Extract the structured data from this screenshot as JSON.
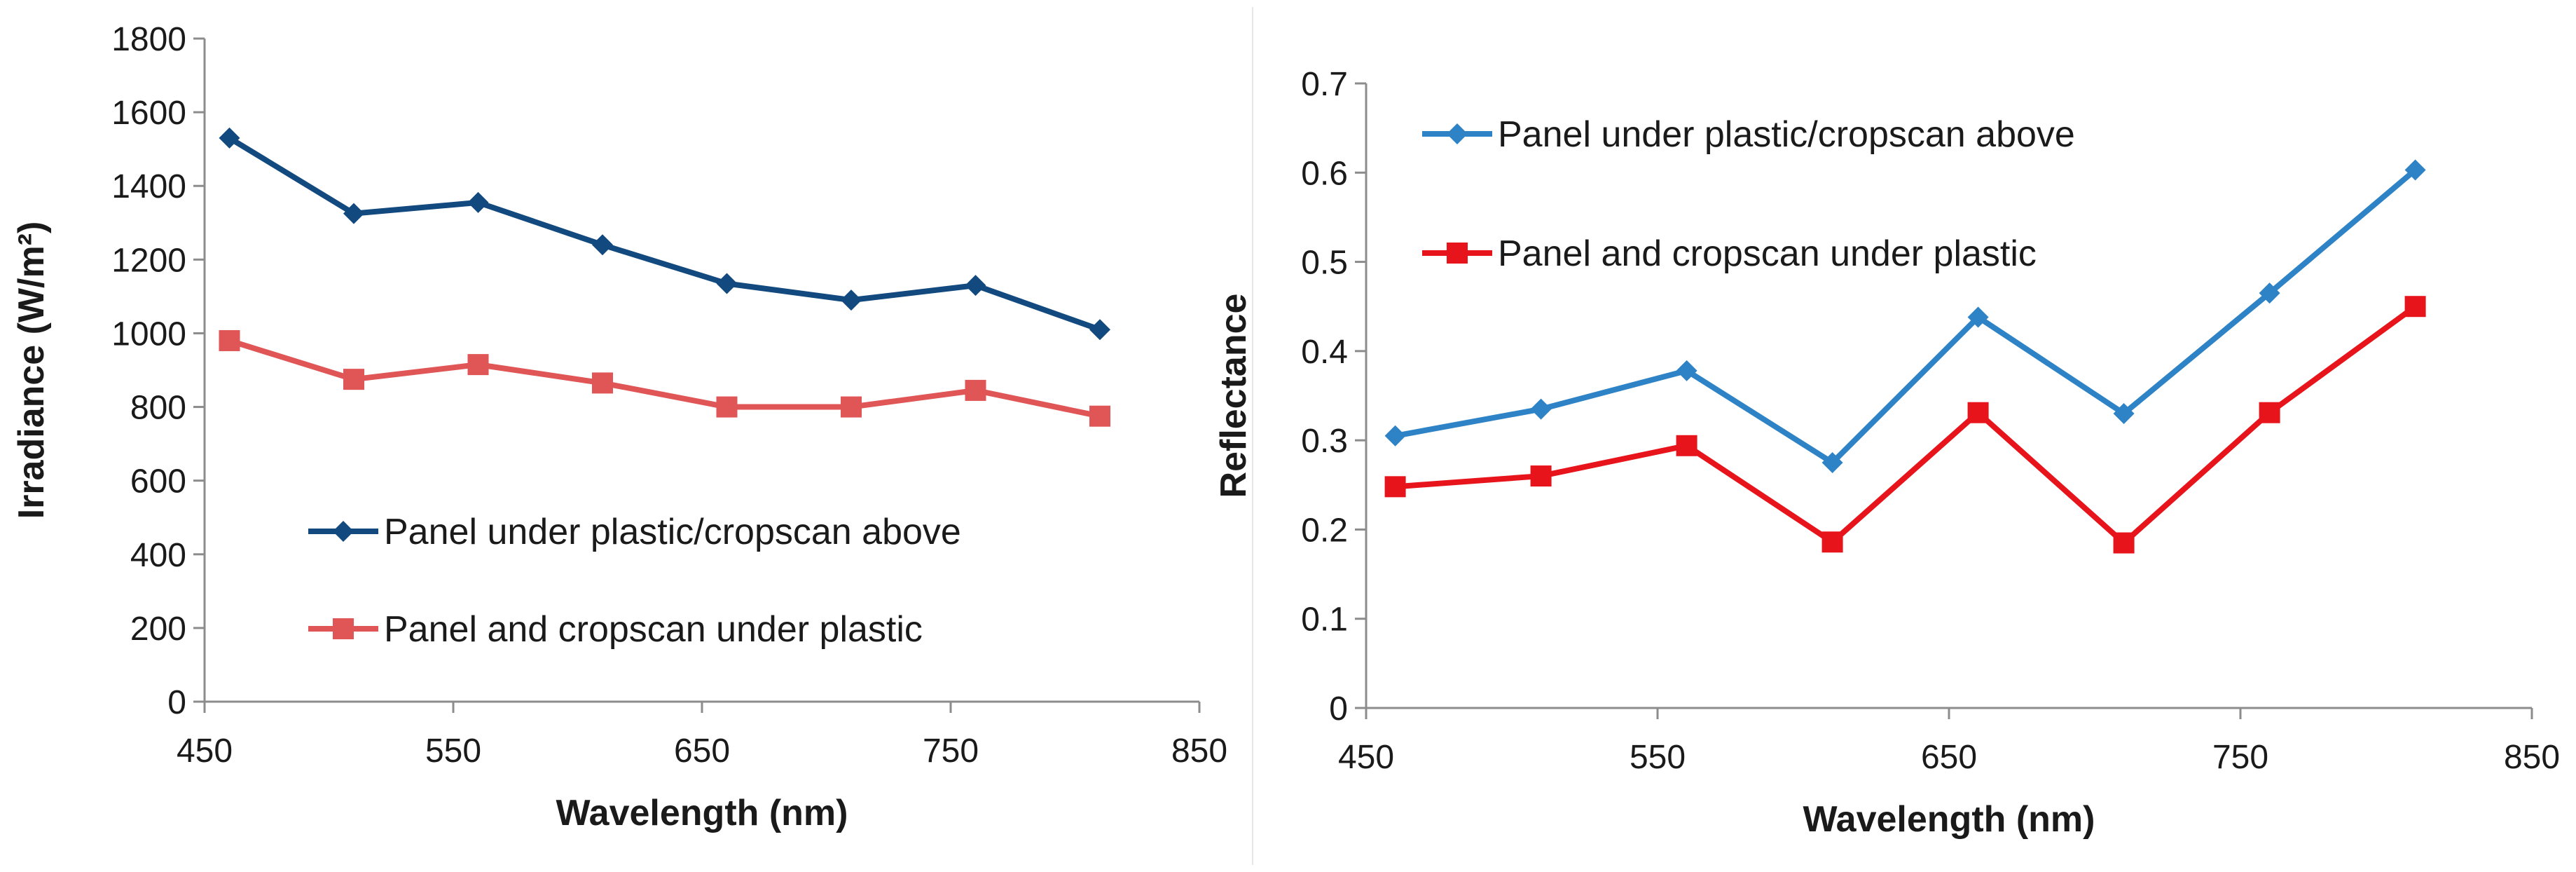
{
  "chart_data": [
    {
      "type": "line",
      "title": "",
      "xlabel": "Wavelength (nm)",
      "ylabel": "Irradiance (W/m²)",
      "xlim": [
        450,
        850
      ],
      "ylim": [
        0,
        1800
      ],
      "x_ticks": [
        "450",
        "550",
        "650",
        "750",
        "850"
      ],
      "y_ticks": [
        "0",
        "200",
        "400",
        "600",
        "800",
        "1000",
        "1200",
        "1400",
        "1600",
        "1800"
      ],
      "x": [
        460,
        510,
        560,
        610,
        660,
        710,
        760,
        810
      ],
      "legend_position": "lower-left",
      "grid": false,
      "series": [
        {
          "name": "Panel under plastic/cropscan above",
          "color": "#12497f",
          "marker": "diamond",
          "values": [
            1530,
            1325,
            1355,
            1240,
            1135,
            1090,
            1130,
            1010
          ]
        },
        {
          "name": "Panel and cropscan under plastic",
          "color": "#e05555",
          "marker": "square",
          "values": [
            980,
            875,
            915,
            865,
            800,
            800,
            845,
            775
          ]
        }
      ]
    },
    {
      "type": "line",
      "title": "",
      "xlabel": "Wavelength (nm)",
      "ylabel": "Reflectance",
      "xlim": [
        450,
        850
      ],
      "ylim": [
        0,
        0.7
      ],
      "x_ticks": [
        "450",
        "550",
        "650",
        "750",
        "850"
      ],
      "y_ticks": [
        "0",
        "0.1",
        "0.2",
        "0.3",
        "0.4",
        "0.5",
        "0.6",
        "0.7"
      ],
      "x": [
        460,
        510,
        560,
        610,
        660,
        710,
        760,
        810
      ],
      "legend_position": "top-left",
      "grid": false,
      "series": [
        {
          "name": "Panel under plastic/cropscan above",
          "color": "#2e83c6",
          "marker": "diamond",
          "values": [
            0.305,
            0.335,
            0.378,
            0.275,
            0.438,
            0.33,
            0.465,
            0.603
          ]
        },
        {
          "name": "Panel and cropscan under plastic",
          "color": "#e8141c",
          "marker": "square",
          "values": [
            0.248,
            0.26,
            0.294,
            0.186,
            0.331,
            0.185,
            0.331,
            0.45
          ]
        }
      ]
    }
  ]
}
